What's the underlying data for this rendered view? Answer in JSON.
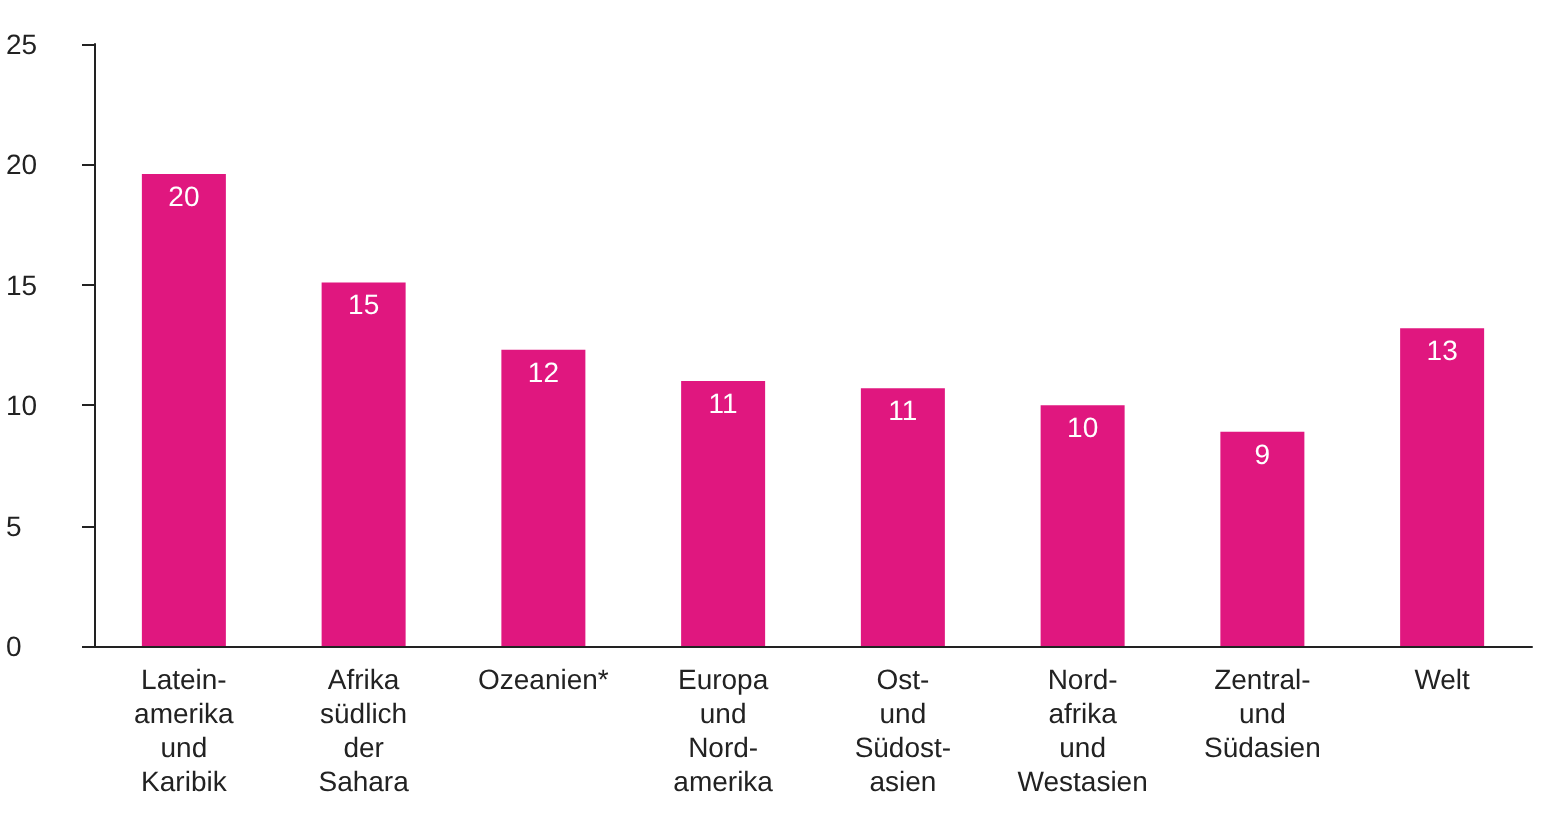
{
  "chart_data": {
    "type": "bar",
    "categories": [
      "Latein-\namerika\nund\nKaribik",
      "Afrika\nsüdlich\nder\nSahara",
      "Ozeanien*",
      "Europa\nund\nNord-\namerika",
      "Ost-\nund\nSüdost-\nasien",
      "Nord-\nafrika\nund\nWestasien",
      "Zentral-\nund\nSüdasien",
      "Welt"
    ],
    "values": [
      19.6,
      15.1,
      12.3,
      11.0,
      10.7,
      10.0,
      8.9,
      13.2
    ],
    "value_labels": [
      "20",
      "15",
      "12",
      "11",
      "11",
      "10",
      "9",
      "13"
    ],
    "color": "#e0177f",
    "ylim": [
      0,
      25
    ],
    "yticks": [
      0,
      5,
      10,
      15,
      20,
      25
    ],
    "grid": false
  }
}
